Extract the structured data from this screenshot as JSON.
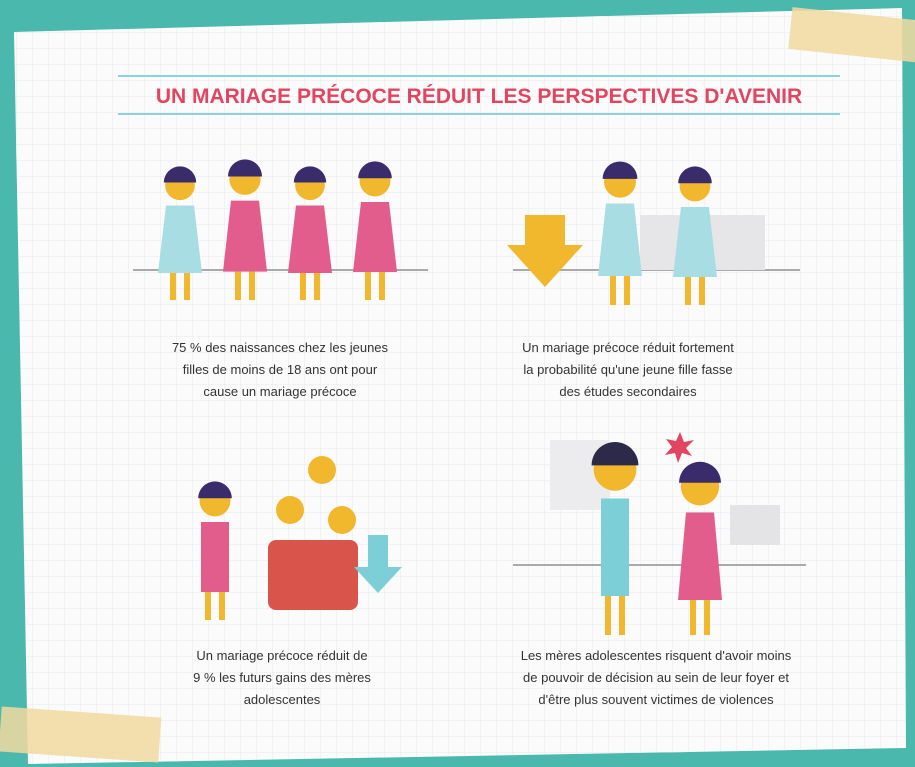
{
  "header": {
    "title": "UN MARIAGE PRÉCOCE RÉDUIT LES PERSPECTIVES D'AVENIR"
  },
  "panels": [
    {
      "caption": [
        "75 % des naissances chez les jeunes",
        "filles de moins de 18 ans ont pour",
        "cause un mariage précoce"
      ]
    },
    {
      "caption": [
        "Un mariage précoce réduit fortement",
        "la probabilité qu'une jeune fille fasse",
        "des études secondaires"
      ]
    },
    {
      "caption": [
        "Un mariage précoce réduit de",
        "9 % les futurs gains des mères",
        "adolescentes"
      ]
    },
    {
      "caption": [
        "Les mères adolescentes risquent d'avoir moins",
        "de pouvoir de décision au sein de leur foyer et",
        "d'être plus souvent victimes de violences"
      ]
    }
  ]
}
